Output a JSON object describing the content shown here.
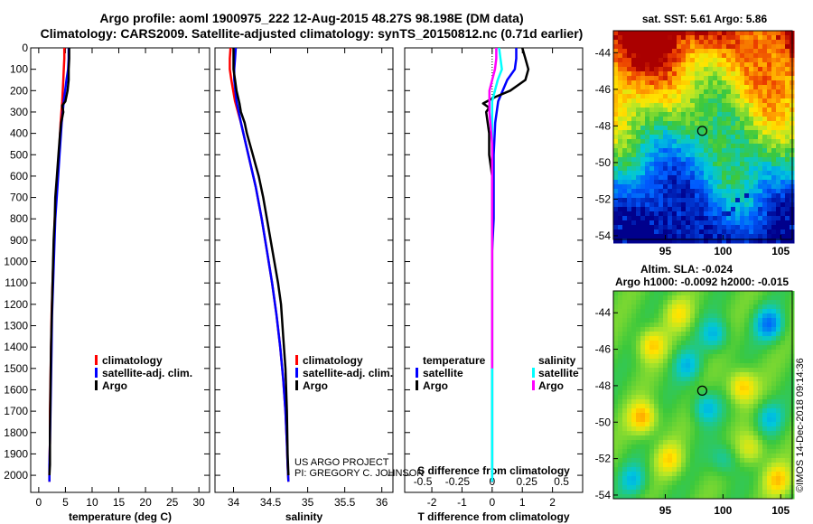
{
  "title": {
    "line1": "Argo profile: aoml 1900975_222 12-Aug-2015 48.27S 98.198E (DM data)",
    "line2": "Climatology: CARS2009. Satellite-adjusted climatology: synTS_20150812.nc (0.71d earlier)"
  },
  "colors": {
    "climatology": "#ff0000",
    "satellite": "#0000ff",
    "argo": "#000000",
    "satellite_s": "#00ffff",
    "argo_s": "#ff00ff"
  },
  "credits": {
    "project": "US ARGO PROJECT",
    "pi": "PI: GREGORY C. JOHNSON",
    "imos": "©IMOS 14-Dec-2018 09:14:36"
  },
  "chart_data": [
    {
      "type": "line",
      "name": "temperature",
      "xlabel": "temperature (deg C)",
      "ylabel": "",
      "ylim": [
        2080,
        0
      ],
      "xlim": [
        -1.5,
        32
      ],
      "xticks": [
        0,
        5,
        10,
        15,
        20,
        25,
        30
      ],
      "xtick_labels": [
        "0",
        "5",
        "10",
        "15",
        "20",
        "25",
        "30"
      ],
      "yticks": [
        0,
        100,
        200,
        300,
        400,
        500,
        600,
        700,
        800,
        900,
        1000,
        1100,
        1200,
        1300,
        1400,
        1500,
        1600,
        1700,
        1800,
        1900,
        2000
      ],
      "ytick_labels": [
        "0",
        "100",
        "200",
        "300",
        "400",
        "500",
        "600",
        "700",
        "800",
        "900",
        "1000",
        "1100",
        "1200",
        "1300",
        "1400",
        "1500",
        "1600",
        "1700",
        "1800",
        "1900",
        "2000"
      ],
      "legend": [
        "climatology",
        "satellite-adj. clim.",
        "Argo"
      ],
      "legend_loc": "bottom-right",
      "series": [
        {
          "name": "climatology",
          "color": "#ff0000",
          "x": [
            4.8,
            4.8,
            4.7,
            4.6,
            4.4,
            4.1,
            3.8,
            3.4,
            3.0,
            2.8,
            2.6,
            2.4,
            2.3,
            2.2,
            2.1,
            2.1,
            2.0,
            2.0
          ],
          "y": [
            0,
            50,
            100,
            150,
            250,
            350,
            500,
            650,
            800,
            950,
            1100,
            1250,
            1400,
            1550,
            1700,
            1850,
            1950,
            2030
          ]
        },
        {
          "name": "satellite-adj. clim.",
          "color": "#0000ff",
          "x": [
            5.6,
            5.6,
            5.5,
            5.2,
            4.7,
            4.3,
            3.9,
            3.5,
            3.1,
            2.9,
            2.7,
            2.5,
            2.4,
            2.3,
            2.2,
            2.1,
            2.0,
            2.0
          ],
          "y": [
            0,
            50,
            100,
            150,
            250,
            350,
            500,
            650,
            800,
            950,
            1100,
            1250,
            1400,
            1550,
            1700,
            1850,
            1950,
            2030
          ]
        },
        {
          "name": "Argo",
          "color": "#000000",
          "x": [
            5.7,
            5.7,
            5.6,
            5.6,
            5.4,
            5.0,
            4.4,
            4.6,
            4.2,
            4.0,
            3.7,
            3.4,
            3.1,
            3.0,
            2.8,
            2.7,
            2.5,
            2.3,
            2.2,
            2.1,
            2.1,
            2.0
          ],
          "y": [
            0,
            50,
            100,
            150,
            200,
            250,
            270,
            300,
            350,
            400,
            500,
            600,
            700,
            800,
            900,
            1000,
            1200,
            1400,
            1600,
            1800,
            1950,
            2000
          ]
        }
      ]
    },
    {
      "type": "line",
      "name": "salinity",
      "xlabel": "salinity",
      "ylabel": "",
      "ylim": [
        2080,
        0
      ],
      "xlim": [
        33.75,
        36.15
      ],
      "xticks": [
        34,
        34.5,
        35,
        35.5,
        36
      ],
      "xtick_labels": [
        "34",
        "34.5",
        "35",
        "35.5",
        "36"
      ],
      "legend": [
        "climatology",
        "satellite-adj. clim.",
        "Argo"
      ],
      "legend_loc": "bottom-right",
      "series": [
        {
          "name": "climatology",
          "color": "#ff0000",
          "x": [
            33.96,
            33.95,
            33.95,
            33.97,
            34.02,
            34.1,
            34.2,
            34.3,
            34.38,
            34.45,
            34.52,
            34.58,
            34.63,
            34.67,
            34.7,
            34.72,
            34.73,
            34.74
          ],
          "y": [
            0,
            50,
            100,
            150,
            250,
            350,
            500,
            650,
            800,
            950,
            1100,
            1250,
            1400,
            1550,
            1700,
            1850,
            1950,
            2030
          ]
        },
        {
          "name": "satellite-adj. clim.",
          "color": "#0000ff",
          "x": [
            34.03,
            34.02,
            34.01,
            34.01,
            34.04,
            34.1,
            34.2,
            34.3,
            34.38,
            34.45,
            34.52,
            34.58,
            34.63,
            34.67,
            34.7,
            34.72,
            34.73,
            34.74
          ],
          "y": [
            0,
            50,
            100,
            150,
            250,
            350,
            500,
            650,
            800,
            950,
            1100,
            1250,
            1400,
            1550,
            1700,
            1850,
            1950,
            2030
          ]
        },
        {
          "name": "Argo",
          "color": "#000000",
          "x": [
            34.0,
            34.0,
            34.0,
            34.02,
            34.04,
            34.08,
            34.1,
            34.15,
            34.18,
            34.22,
            34.26,
            34.3,
            34.34,
            34.4,
            34.45,
            34.5,
            34.55,
            34.6,
            34.64,
            34.67,
            34.7,
            34.72,
            34.73,
            34.74
          ],
          "y": [
            0,
            50,
            100,
            150,
            200,
            260,
            300,
            350,
            400,
            450,
            500,
            550,
            600,
            700,
            800,
            900,
            1000,
            1100,
            1200,
            1350,
            1500,
            1700,
            1900,
            2000
          ]
        }
      ]
    },
    {
      "type": "line",
      "name": "difference",
      "xlabel": "T difference from climatology",
      "x2label": "S difference from climatology",
      "ylabel": "",
      "ylim": [
        2080,
        0
      ],
      "xlim": [
        -2.9,
        3.0
      ],
      "xticks": [
        -2,
        -1,
        0,
        1,
        2
      ],
      "xtick_labels": [
        "-2",
        "-1",
        "0",
        "1",
        "2"
      ],
      "x2ticks": [
        -0.5,
        -0.25,
        0,
        0.25,
        0.5
      ],
      "x2tick_labels": [
        "-0.5",
        "-0.25",
        "0",
        "0.25",
        "0.5"
      ],
      "legend_temperature_title": "temperature",
      "legend_salinity_title": "salinity",
      "legend_temperature": [
        "satellite",
        "Argo"
      ],
      "legend_salinity": [
        "satellite",
        "Argo"
      ],
      "series": [
        {
          "name": "T satellite",
          "color": "#0000ff",
          "x": [
            0.8,
            0.8,
            0.75,
            0.5,
            0.2,
            0.1,
            0.05,
            0.05,
            0.05,
            0.0,
            0.0,
            0.0,
            0.0,
            0.0,
            0.0,
            0.0,
            0.0,
            0.0
          ],
          "y": [
            0,
            50,
            100,
            150,
            250,
            350,
            500,
            650,
            800,
            950,
            1100,
            1250,
            1400,
            1550,
            1700,
            1850,
            1950,
            2030
          ]
        },
        {
          "name": "T Argo",
          "color": "#000000",
          "x": [
            1.0,
            1.1,
            1.2,
            1.1,
            0.6,
            0.1,
            -0.3,
            -0.1,
            -0.2,
            -0.1,
            -0.1,
            0.0,
            0.0,
            0.0,
            0.0,
            0.0,
            0.0,
            0.0
          ],
          "y": [
            0,
            50,
            100,
            150,
            200,
            230,
            260,
            280,
            300,
            400,
            500,
            600,
            800,
            1000,
            1200,
            1500,
            1800,
            2000
          ]
        },
        {
          "name": "S satellite",
          "color": "#00ffff",
          "x": [
            0.05,
            0.06,
            0.07,
            0.04,
            0.0,
            0.0,
            0.0,
            0.0,
            0.0,
            0.0,
            0.0,
            0.0,
            0.0,
            0.0,
            0.0
          ],
          "y": [
            0,
            50,
            100,
            150,
            250,
            350,
            500,
            650,
            800,
            950,
            1100,
            1300,
            1500,
            1800,
            2030
          ]
        },
        {
          "name": "S Argo",
          "color": "#ff00ff",
          "x": [
            0.03,
            0.03,
            0.02,
            -0.02,
            -0.02,
            0.0,
            0.0,
            0.0,
            0.0,
            0.0,
            0.0,
            0.0
          ],
          "y": [
            0,
            50,
            100,
            200,
            300,
            450,
            600,
            800,
            1000,
            1200,
            1350,
            1500
          ]
        }
      ]
    },
    {
      "type": "heatmap",
      "name": "sst_map",
      "title": "sat. SST: 5.61 Argo: 5.86",
      "xticks": [
        95,
        100,
        105
      ],
      "xtick_labels": [
        "95",
        "100",
        "105"
      ],
      "yticks": [
        -44,
        -46,
        -48,
        -50,
        -52,
        -54
      ],
      "ytick_labels": [
        "-44",
        "-46",
        "-48",
        "-50",
        "-52",
        "-54"
      ],
      "xlim": [
        90.5,
        106
      ],
      "ylim": [
        -54.2,
        -42.8
      ],
      "marker": {
        "lon": 98.2,
        "lat": -48.27
      }
    },
    {
      "type": "heatmap",
      "name": "sla_map",
      "title": "Altim. SLA: -0.024",
      "subtitle": "Argo h1000: -0.0092 h2000: -0.015",
      "xticks": [
        95,
        100,
        105
      ],
      "xtick_labels": [
        "95",
        "100",
        "105"
      ],
      "yticks": [
        -44,
        -46,
        -48,
        -50,
        -52,
        -54
      ],
      "ytick_labels": [
        "-44",
        "-46",
        "-48",
        "-50",
        "-52",
        "-54"
      ],
      "xlim": [
        90.5,
        106
      ],
      "ylim": [
        -54.2,
        -42.8
      ],
      "marker": {
        "lon": 98.2,
        "lat": -48.27
      }
    }
  ]
}
